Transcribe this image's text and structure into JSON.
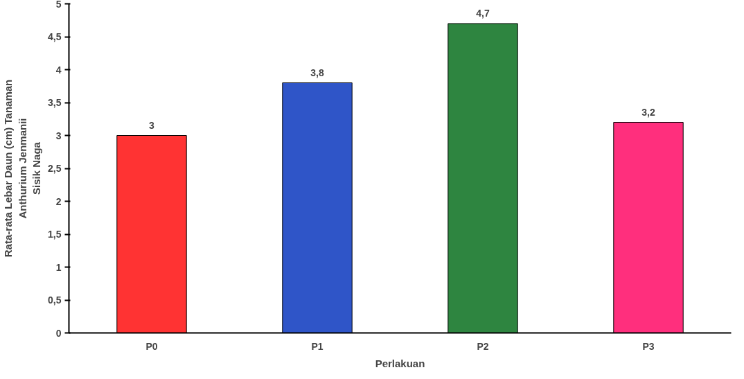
{
  "chart_data": {
    "type": "bar",
    "xlabel": "Perlakuan",
    "ylabel": "Rata-rata Lebar Daun (cm) Tanaman\nAnthurium Jenmanii\nSisik Naga",
    "categories": [
      "P0",
      "P1",
      "P2",
      "P3"
    ],
    "values": [
      3,
      3.8,
      4.7,
      3.2
    ],
    "colors": [
      "#ff3333",
      "#2f55c8",
      "#2e8540",
      "#ff2f7d"
    ],
    "value_labels": [
      "3",
      "3,8",
      "4,7",
      "3,2"
    ],
    "ylim": [
      0,
      5
    ],
    "yticks": [
      0,
      {
        "value": 0.5,
        "label": "0,5"
      },
      1,
      {
        "value": 1.5,
        "label": "1,5"
      },
      2,
      {
        "value": 2.5,
        "label": "2,5"
      },
      3,
      {
        "value": 3.5,
        "label": "3,5"
      },
      4,
      {
        "value": 4.5,
        "label": "4,5"
      },
      5
    ]
  }
}
